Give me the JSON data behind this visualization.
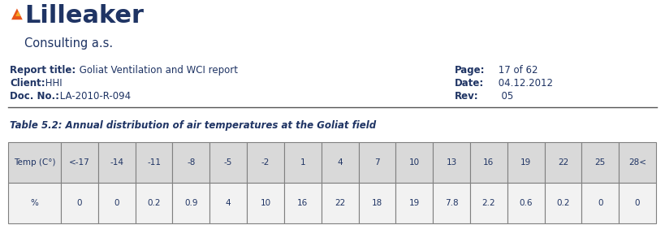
{
  "logo_text_large": "Lilleaker",
  "logo_text_small": "Consulting a.s.",
  "logo_flame_color": "#e8541a",
  "logo_text_color": "#1f3464",
  "report_title_label": "Report title:",
  "report_title_value": " Goliat Ventilation and WCI report",
  "client_label": "Client:",
  "client_value": " HHI",
  "docno_label": "Doc. No.:",
  "docno_value": " LA-2010-R-094",
  "page_label": "Page:",
  "page_value": " 17 of 62",
  "date_label": "Date:",
  "date_value": " 04.12.2012",
  "rev_label": "Rev:",
  "rev_value": "  05",
  "table_title": "Table 5.2: Annual distribution of air temperatures at the Goliat field",
  "table_title_color": "#1f3464",
  "header_label": "Temp (C°)",
  "percent_label": "%",
  "temp_columns": [
    "<-17",
    "-14",
    "-11",
    "-8",
    "-5",
    "-2",
    "1",
    "4",
    "7",
    "10",
    "13",
    "16",
    "19",
    "22",
    "25",
    "28<"
  ],
  "percent_values": [
    "0",
    "0",
    "0.2",
    "0.9",
    "4",
    "10",
    "16",
    "22",
    "18",
    "19",
    "7.8",
    "2.2",
    "0.6",
    "0.2",
    "0",
    "0"
  ],
  "header_bg": "#d9d9d9",
  "row_bg": "#f2f2f2",
  "table_text_color": "#1f3464",
  "border_color": "#808080",
  "bold_label_color": "#1f3464",
  "value_color": "#1f3464",
  "background_color": "#ffffff",
  "fig_width": 8.19,
  "fig_height": 2.93,
  "dpi": 100
}
